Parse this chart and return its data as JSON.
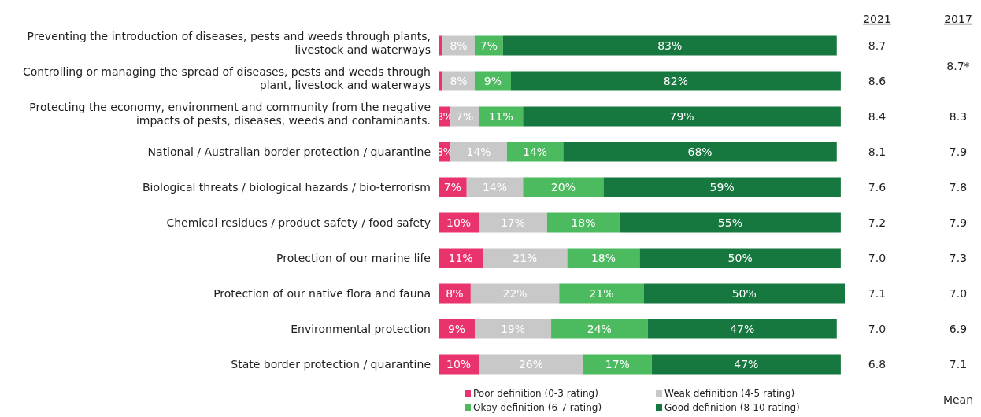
{
  "chart_data": {
    "type": "bar",
    "orientation": "horizontal",
    "stacked": true,
    "xlim": [
      0,
      101
    ],
    "tick_labels": "y",
    "legend": "bottom",
    "categories": [
      "Preventing the introduction of diseases, pests and weeds through plants, livestock and waterways",
      "Controlling or managing the spread of diseases, pests and weeds through plant, livestock and waterways",
      "Protecting the economy, environment and community from the negative impacts of pests, diseases, weeds and contaminants.",
      "National / Australian border protection / quarantine",
      "Biological threats / biological hazards / bio-terrorism",
      "Chemical residues / product safety / food safety",
      "Protection of our marine life",
      "Protection of our native flora and fauna",
      "Environmental protection",
      "State border protection / quarantine"
    ],
    "series": [
      {
        "name": "Poor definition (0-3 rating)",
        "color": "#e8336d",
        "values": [
          1,
          1,
          3,
          3,
          7,
          10,
          11,
          8,
          9,
          10
        ],
        "value_labels": [
          null,
          null,
          "3%",
          "3%",
          "7%",
          "10%",
          "11%",
          "8%",
          "9%",
          "10%"
        ]
      },
      {
        "name": "Weak definition (4-5 rating)",
        "color": "#c8c8c8",
        "values": [
          8,
          8,
          7,
          14,
          14,
          17,
          21,
          22,
          19,
          26
        ],
        "value_labels": [
          "8%",
          "8%",
          "7%",
          "14%",
          "14%",
          "17%",
          "21%",
          "22%",
          "19%",
          "26%"
        ]
      },
      {
        "name": "Okay definition (6-7 rating)",
        "color": "#4cbb5f",
        "values": [
          7,
          9,
          11,
          14,
          20,
          18,
          18,
          21,
          24,
          17
        ],
        "value_labels": [
          "7%",
          "9%",
          "11%",
          "14%",
          "20%",
          "18%",
          "18%",
          "21%",
          "24%",
          "17%"
        ]
      },
      {
        "name": "Good definition (8-10 rating)",
        "color": "#17783f",
        "values": [
          83,
          82,
          79,
          68,
          59,
          55,
          50,
          50,
          47,
          47
        ],
        "value_labels": [
          "83%",
          "82%",
          "79%",
          "68%",
          "59%",
          "55%",
          "50%",
          "50%",
          "47%",
          "47%"
        ]
      }
    ],
    "annotations": [
      "2021",
      "2017",
      "8.7",
      "8.6",
      "8.4",
      "8.1",
      "7.6",
      "7.2",
      "7.0",
      "7.1",
      "7.0",
      "6.8",
      "8.7*",
      "8.3",
      "7.9",
      "7.8",
      "7.9",
      "7.3",
      "7.0",
      "6.9",
      "7.1",
      "Mean"
    ]
  }
}
